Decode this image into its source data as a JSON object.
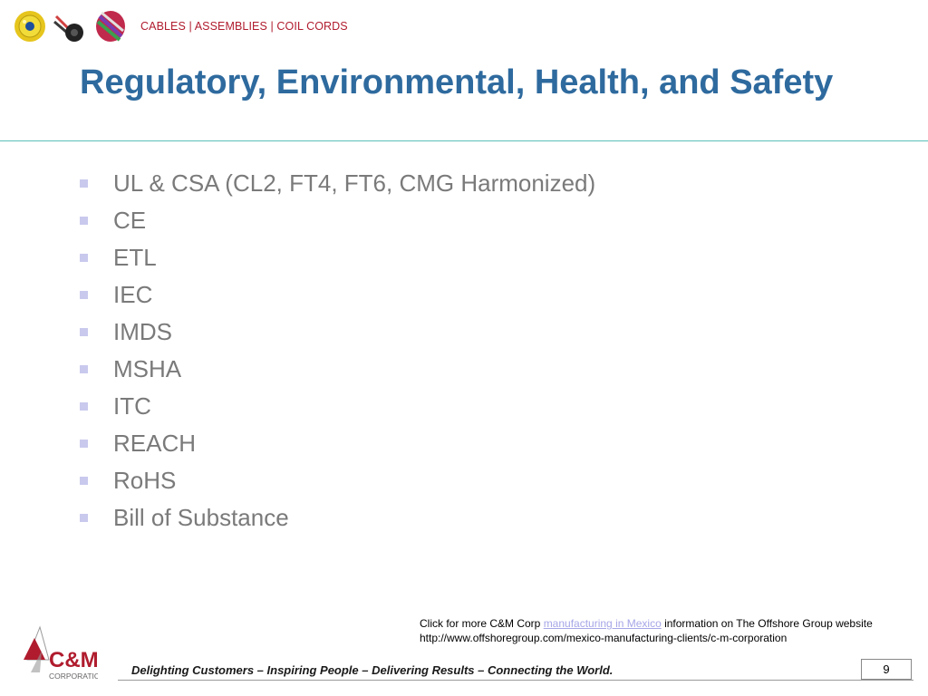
{
  "header": {
    "tagline": "CABLES | ASSEMBLIES | COIL CORDS",
    "icons": [
      "yellow-cable-reel-icon",
      "black-connector-icon",
      "striped-cables-icon"
    ]
  },
  "slide": {
    "title": "Regulatory, Environmental, Health, and Safety",
    "bullets": [
      "UL & CSA (CL2, FT4, FT6, CMG Harmonized)",
      "CE",
      "ETL",
      "IEC",
      "IMDS",
      "MSHA",
      "ITC",
      "REACH",
      "RoHS",
      "Bill of Substance"
    ]
  },
  "info": {
    "prefix": "Click for more C&M Corp ",
    "link_text": "manufacturing in Mexico",
    "suffix": " information on The Offshore Group website",
    "url": "http://www.offshoregroup.com/mexico-manufacturing-clients/c-m-corporation"
  },
  "footer": {
    "logo_main": "C&M",
    "logo_sub": "CORPORATION",
    "slogan": "Delighting Customers – Inspiring People – Delivering Results – Connecting the World.",
    "page_number": "9"
  },
  "colors": {
    "title": "#2e6a9e",
    "tagline": "#b01c2e",
    "bullet_text": "#7a7a7a",
    "bullet_marker": "#c9c9ee",
    "rule": "#5bbfb8"
  }
}
